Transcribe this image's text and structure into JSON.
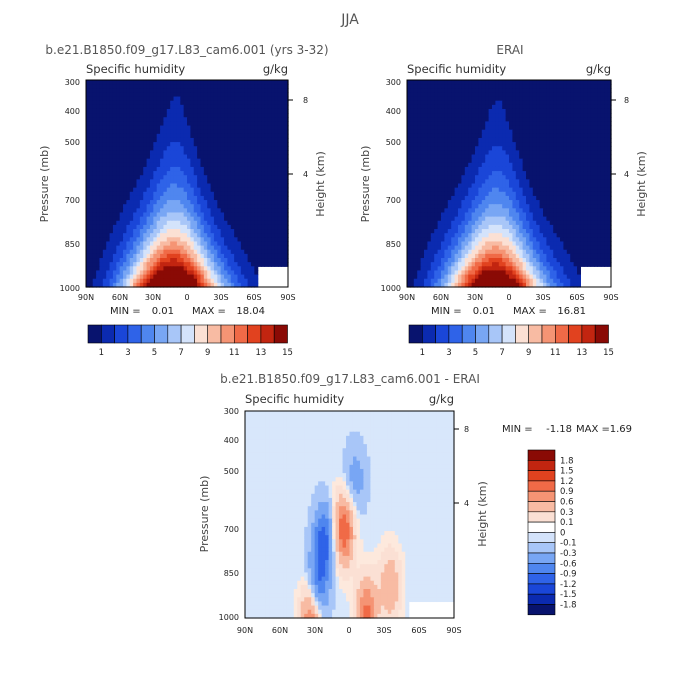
{
  "figure": {
    "title": "JJA"
  },
  "chart_data": [
    {
      "type": "heatmap",
      "title": "b.e21.B1850.f09_g17.L83_cam6.001 (yrs 3-32)",
      "subtitle_left": "Specific humidity",
      "subtitle_right": "g/kg",
      "xlabel": "",
      "ylabel": "Pressure (mb)",
      "ylabel_right": "Height (km)",
      "x_ticks": [
        "90N",
        "60N",
        "30N",
        "0",
        "30S",
        "60S",
        "90S"
      ],
      "y_ticks": [
        "300",
        "400",
        "500",
        "700",
        "850",
        "1000"
      ],
      "y_ticks_right": [
        "8",
        "4"
      ],
      "stats": {
        "min_label": "MIN =",
        "min": "0.01",
        "max_label": "MAX =",
        "max": "18.04"
      },
      "colorbar": {
        "orientation": "horizontal",
        "labels": [
          "1",
          "3",
          "5",
          "7",
          "9",
          "11",
          "13",
          "15"
        ],
        "colors": [
          "#08136e",
          "#0b2ab0",
          "#1a46d8",
          "#2f63e8",
          "#4f86ef",
          "#78a6f4",
          "#a8c6f8",
          "#d4e3fb",
          "#fbe0d4",
          "#f8bba3",
          "#f59474",
          "#f06a47",
          "#e1421f",
          "#c22510",
          "#8a0a05"
        ]
      },
      "field": {
        "peak_value": 18.04,
        "peak_lat": 10,
        "peak_pressure": 1000,
        "ridge": "tropics, maximum near the surface just north of the equator"
      }
    },
    {
      "type": "heatmap",
      "title": "ERAI",
      "subtitle_left": "Specific humidity",
      "subtitle_right": "g/kg",
      "xlabel": "",
      "ylabel": "Pressure (mb)",
      "ylabel_right": "Height (km)",
      "x_ticks": [
        "90N",
        "60N",
        "30N",
        "0",
        "30S",
        "60S",
        "90S"
      ],
      "y_ticks": [
        "300",
        "400",
        "500",
        "700",
        "850",
        "1000"
      ],
      "y_ticks_right": [
        "8",
        "4"
      ],
      "stats": {
        "min_label": "MIN =",
        "min": "0.01",
        "max_label": "MAX =",
        "max": "16.81"
      },
      "colorbar": {
        "orientation": "horizontal",
        "labels": [
          "1",
          "3",
          "5",
          "7",
          "9",
          "11",
          "13",
          "15"
        ],
        "colors": [
          "#08136e",
          "#0b2ab0",
          "#1a46d8",
          "#2f63e8",
          "#4f86ef",
          "#78a6f4",
          "#a8c6f8",
          "#d4e3fb",
          "#fbe0d4",
          "#f8bba3",
          "#f59474",
          "#f06a47",
          "#e1421f",
          "#c22510",
          "#8a0a05"
        ]
      },
      "field": {
        "peak_value": 16.81,
        "peak_lat": 10,
        "peak_pressure": 1000,
        "ridge": "tropics, maximum near the surface just north of the equator"
      }
    },
    {
      "type": "heatmap",
      "title": "b.e21.B1850.f09_g17.L83_cam6.001 - ERAI",
      "subtitle_left": "Specific humidity",
      "subtitle_right": "g/kg",
      "xlabel": "",
      "ylabel": "Pressure (mb)",
      "ylabel_right": "Height (km)",
      "x_ticks": [
        "90N",
        "60N",
        "30N",
        "0",
        "30S",
        "60S",
        "90S"
      ],
      "y_ticks": [
        "300",
        "400",
        "500",
        "700",
        "850",
        "1000"
      ],
      "y_ticks_right": [
        "8",
        "4"
      ],
      "stats": {
        "min_label": "MIN =",
        "min": "-1.18",
        "max_label": "MAX =",
        "max": "1.69"
      },
      "colorbar": {
        "orientation": "vertical",
        "labels": [
          "1.8",
          "1.5",
          "1.2",
          "0.9",
          "0.6",
          "0.3",
          "0.1",
          "0",
          "-0.1",
          "-0.3",
          "-0.6",
          "-0.9",
          "-1.2",
          "-1.5",
          "-1.8"
        ],
        "colors": [
          "#8a0a05",
          "#c22510",
          "#e1421f",
          "#f06a47",
          "#f59474",
          "#f8bba3",
          "#fbe0d4",
          "#ffffff",
          "#d4e3fb",
          "#a8c6f8",
          "#78a6f4",
          "#4f86ef",
          "#2f63e8",
          "#1a46d8",
          "#0b2ab0",
          "#08136e"
        ]
      },
      "field": {
        "background_value": -0.05,
        "features": [
          {
            "lat": 5,
            "pressure": 600,
            "value": 1.2
          },
          {
            "lat": 22,
            "pressure": 640,
            "value": -1.0
          },
          {
            "lat": 28,
            "pressure": 860,
            "value": -1.1
          },
          {
            "lat": 32,
            "pressure": 970,
            "value": 1.3
          },
          {
            "lat": -15,
            "pressure": 970,
            "value": 1.0
          },
          {
            "lat": -35,
            "pressure": 830,
            "value": 0.6
          },
          {
            "lat": -5,
            "pressure": 450,
            "value": -0.4
          }
        ]
      }
    }
  ]
}
